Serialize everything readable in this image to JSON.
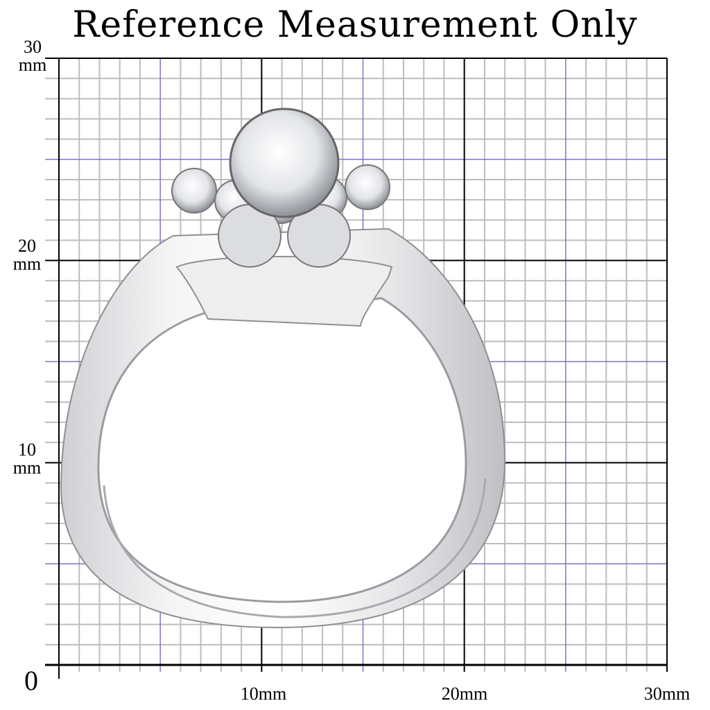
{
  "title": "Reference Measurement Only",
  "axes": {
    "unit": "mm",
    "y_labels": [
      {
        "value": "30",
        "unit": "mm"
      },
      {
        "value": "20",
        "unit": "mm"
      },
      {
        "value": "10",
        "unit": "mm"
      }
    ],
    "origin_label": "0",
    "x_labels": [
      "10mm",
      "20mm",
      "30mm"
    ],
    "range_mm": [
      0,
      30
    ],
    "grid": {
      "minor_mm": 1,
      "mid_mm": 5,
      "major_mm": 10
    },
    "colors": {
      "minor": "#bdbdbd",
      "mid": "#7b74c9",
      "major": "#000000"
    }
  },
  "subject": "silver ring set with clear stones"
}
